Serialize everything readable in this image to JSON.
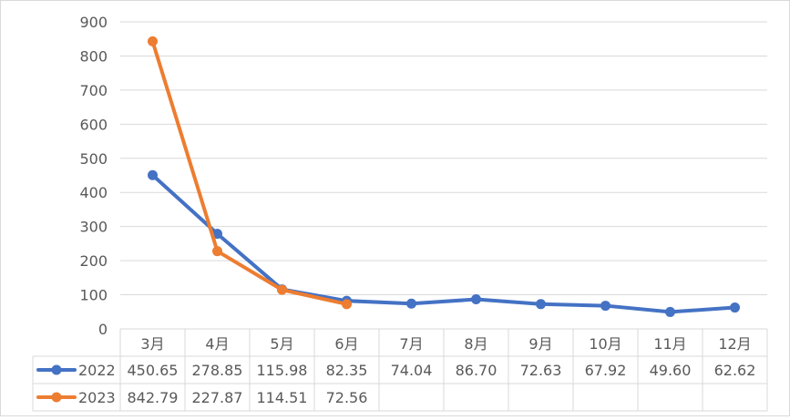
{
  "chart_data": {
    "type": "line",
    "title": "",
    "xlabel": "",
    "ylabel": "",
    "ylim": [
      0,
      900
    ],
    "yticks": [
      0,
      100,
      200,
      300,
      400,
      500,
      600,
      700,
      800,
      900
    ],
    "categories": [
      "3月",
      "4月",
      "5月",
      "6月",
      "7月",
      "8月",
      "9月",
      "10月",
      "11月",
      "12月"
    ],
    "grid": true,
    "legend": "data-table",
    "series": [
      {
        "name": "2022",
        "color": "#4472C4",
        "values": [
          450.65,
          278.85,
          115.98,
          82.35,
          74.04,
          86.7,
          72.63,
          67.92,
          49.6,
          62.62
        ],
        "labels": [
          "450.65",
          "278.85",
          "115.98",
          "82.35",
          "74.04",
          "86.70",
          "72.63",
          "67.92",
          "49.60",
          "62.62"
        ]
      },
      {
        "name": "2023",
        "color": "#ED7D31",
        "values": [
          842.79,
          227.87,
          114.51,
          72.56,
          null,
          null,
          null,
          null,
          null,
          null
        ],
        "labels": [
          "842.79",
          "227.87",
          "114.51",
          "72.56",
          "",
          "",
          "",
          "",
          "",
          ""
        ]
      }
    ]
  }
}
